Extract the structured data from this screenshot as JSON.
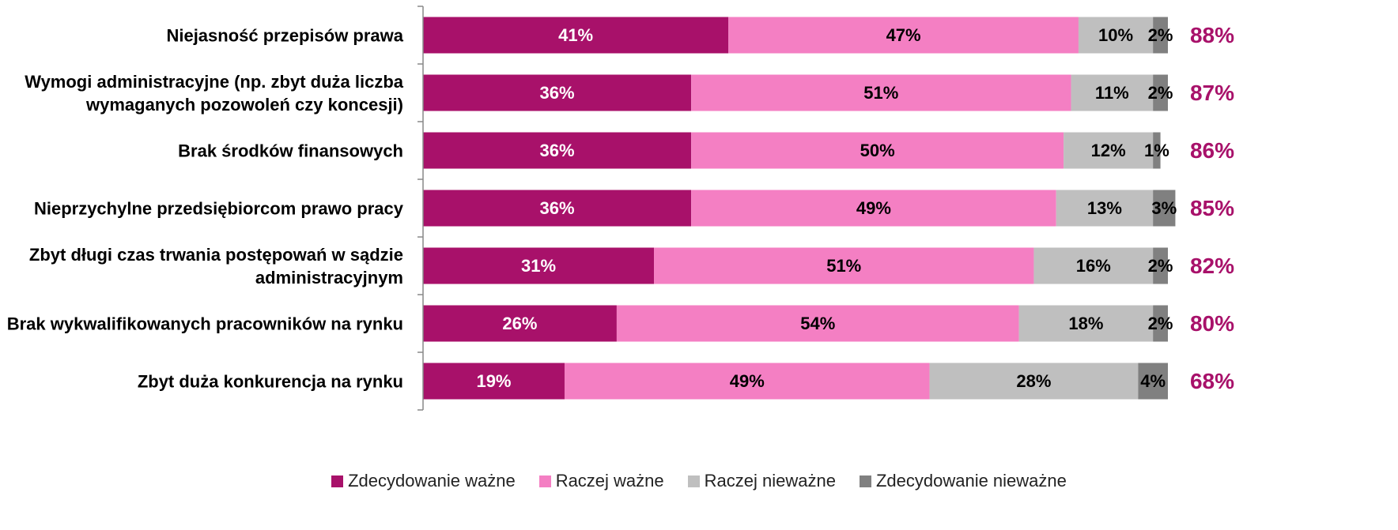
{
  "chart_data": {
    "type": "stacked_barh",
    "categories": [
      "Niejasność przepisów prawa",
      "Wymogi administracyjne (np. zbyt duża liczba wymaganych pozowoleń czy koncesji)",
      "Brak środków finansowych",
      "Nieprzychylne przedsiębiorcom prawo pracy",
      "Zbyt długi czas trwania postępowań w sądzie administracyjnym",
      "Brak wykwalifikowanych pracowników na rynku",
      "Zbyt duża konkurencja na rynku"
    ],
    "series": [
      {
        "name": "Zdecydowanie ważne",
        "color": "#a8116a",
        "label_color": "#ffffff",
        "values": [
          41,
          36,
          36,
          36,
          31,
          26,
          19
        ],
        "value_labels": [
          "41%",
          "36%",
          "36%",
          "36%",
          "31%",
          "26%",
          "19%"
        ]
      },
      {
        "name": "Raczej ważne",
        "color": "#f47fc3",
        "label_color": "#000000",
        "values": [
          47,
          51,
          50,
          49,
          51,
          54,
          49
        ],
        "value_labels": [
          "47%",
          "51%",
          "50%",
          "49%",
          "51%",
          "54%",
          "49%"
        ]
      },
      {
        "name": "Raczej nieważne",
        "color": "#bfbfbf",
        "label_color": "#000000",
        "values": [
          10,
          11,
          12,
          13,
          16,
          18,
          28
        ],
        "value_labels": [
          "10%",
          "11%",
          "12%",
          "13%",
          "16%",
          "18%",
          "28%"
        ]
      },
      {
        "name": "Zdecydowanie nieważne",
        "color": "#808080",
        "label_color": "#000000",
        "values": [
          2,
          2,
          1,
          3,
          2,
          2,
          4
        ],
        "value_labels": [
          "2%",
          "2%",
          "1%",
          "3%",
          "2%",
          "2%",
          "4%"
        ]
      }
    ],
    "totals": {
      "color": "#a8116a",
      "values": [
        88,
        87,
        86,
        85,
        82,
        80,
        68
      ],
      "value_labels": [
        "88%",
        "87%",
        "86%",
        "85%",
        "82%",
        "80%",
        "68%"
      ]
    },
    "xlim": [
      0,
      100
    ],
    "legend": "bottom"
  }
}
